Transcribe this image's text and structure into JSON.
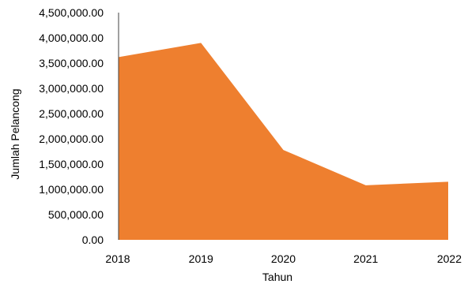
{
  "chart_data": {
    "type": "area",
    "title": "",
    "xlabel": "Tahun",
    "ylabel": "Jumlah Pelancong",
    "categories": [
      "2018",
      "2019",
      "2020",
      "2021",
      "2022"
    ],
    "series": [
      {
        "values": [
          3620000,
          3900000,
          1780000,
          1080000,
          1150000
        ],
        "color": "#EE7F2F"
      }
    ],
    "ylim": [
      0,
      4500000
    ],
    "yticks": [
      "0.00",
      "500,000.00",
      "1,000,000.00",
      "1,500,000.00",
      "2,000,000.00",
      "2,500,000.00",
      "3,000,000.00",
      "3,500,000.00",
      "4,000,000.00",
      "4,500,000.00"
    ],
    "ytick_values": [
      0,
      500000,
      1000000,
      1500000,
      2000000,
      2500000,
      3000000,
      3500000,
      4000000,
      4500000
    ],
    "grid": false,
    "legend": "none"
  }
}
